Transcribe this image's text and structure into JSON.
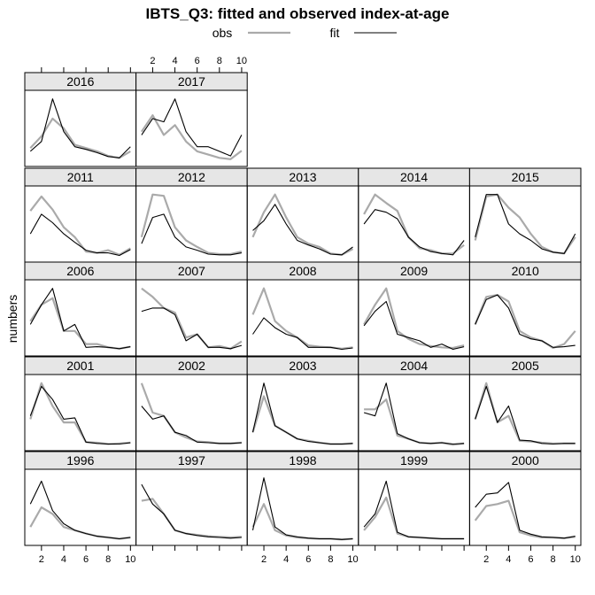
{
  "chart_data": {
    "type": "line",
    "title": "IBTS_Q3: fitted and observed index-at-age",
    "ylabel": "numbers",
    "x": [
      1,
      2,
      3,
      4,
      5,
      6,
      7,
      8,
      9,
      10
    ],
    "x_ticks": [
      2,
      4,
      6,
      8,
      10
    ],
    "xlim": [
      0.5,
      10.5
    ],
    "ylim": [
      0,
      1
    ],
    "legend": {
      "position": "top",
      "entries": [
        {
          "name": "obs",
          "color": "#aaaaaa"
        },
        {
          "name": "fit",
          "color": "#000000"
        }
      ]
    },
    "layout": {
      "columns": 5,
      "rows": 5
    },
    "panels": [
      {
        "year": "1996",
        "obs": [
          0.2,
          0.5,
          0.4,
          0.2,
          0.15,
          0.1,
          0.06,
          0.04,
          0.02,
          0.04
        ],
        "fit": [
          0.55,
          0.9,
          0.45,
          0.25,
          0.15,
          0.1,
          0.06,
          0.04,
          0.02,
          0.04
        ]
      },
      {
        "year": "1997",
        "obs": [
          0.6,
          0.63,
          0.4,
          0.15,
          0.1,
          0.08,
          0.06,
          0.05,
          0.04,
          0.05
        ],
        "fit": [
          0.85,
          0.55,
          0.4,
          0.15,
          0.1,
          0.07,
          0.05,
          0.04,
          0.03,
          0.04
        ]
      },
      {
        "year": "1998",
        "obs": [
          0.2,
          0.55,
          0.15,
          0.07,
          0.04,
          0.03,
          0.02,
          0.02,
          0.01,
          0.02
        ],
        "fit": [
          0.15,
          0.95,
          0.2,
          0.08,
          0.05,
          0.03,
          0.02,
          0.02,
          0.01,
          0.02
        ]
      },
      {
        "year": "1999",
        "obs": [
          0.15,
          0.35,
          0.65,
          0.1,
          0.05,
          0.04,
          0.03,
          0.02,
          0.02,
          0.02
        ],
        "fit": [
          0.2,
          0.4,
          0.9,
          0.12,
          0.05,
          0.04,
          0.03,
          0.02,
          0.02,
          0.02
        ]
      },
      {
        "year": "2000",
        "obs": [
          0.3,
          0.52,
          0.55,
          0.6,
          0.12,
          0.07,
          0.04,
          0.04,
          0.03,
          0.05
        ],
        "fit": [
          0.5,
          0.7,
          0.72,
          0.88,
          0.15,
          0.09,
          0.05,
          0.04,
          0.03,
          0.06
        ]
      },
      {
        "year": "2001",
        "obs": [
          0.4,
          0.95,
          0.6,
          0.35,
          0.35,
          0.05,
          0.04,
          0.02,
          0.03,
          0.04
        ],
        "fit": [
          0.45,
          0.9,
          0.7,
          0.4,
          0.42,
          0.05,
          0.03,
          0.02,
          0.02,
          0.04
        ]
      },
      {
        "year": "2002",
        "obs": [
          0.95,
          0.5,
          0.45,
          0.2,
          0.12,
          0.06,
          0.05,
          0.03,
          0.03,
          0.04
        ],
        "fit": [
          0.6,
          0.4,
          0.45,
          0.2,
          0.15,
          0.05,
          0.04,
          0.03,
          0.03,
          0.04
        ]
      },
      {
        "year": "2003",
        "obs": [
          0.2,
          0.75,
          0.3,
          0.2,
          0.1,
          0.07,
          0.04,
          0.02,
          0.02,
          0.03
        ],
        "fit": [
          0.2,
          0.95,
          0.3,
          0.2,
          0.1,
          0.06,
          0.04,
          0.02,
          0.02,
          0.03
        ]
      },
      {
        "year": "2004",
        "obs": [
          0.55,
          0.55,
          0.7,
          0.15,
          0.1,
          0.04,
          0.03,
          0.04,
          0.01,
          0.03
        ],
        "fit": [
          0.5,
          0.45,
          0.95,
          0.18,
          0.1,
          0.04,
          0.03,
          0.04,
          0.02,
          0.03
        ]
      },
      {
        "year": "2005",
        "obs": [
          0.4,
          0.95,
          0.35,
          0.45,
          0.07,
          0.06,
          0.04,
          0.03,
          0.03,
          0.03
        ],
        "fit": [
          0.4,
          0.9,
          0.35,
          0.6,
          0.08,
          0.07,
          0.03,
          0.02,
          0.03,
          0.03
        ]
      },
      {
        "year": "2006",
        "obs": [
          0.45,
          0.7,
          0.8,
          0.3,
          0.3,
          0.1,
          0.1,
          0.05,
          0.03,
          0.06
        ],
        "fit": [
          0.4,
          0.7,
          0.95,
          0.3,
          0.4,
          0.05,
          0.06,
          0.05,
          0.03,
          0.06
        ]
      },
      {
        "year": "2007",
        "obs": [
          0.95,
          0.82,
          0.65,
          0.58,
          0.2,
          0.25,
          0.05,
          0.07,
          0.03,
          0.14
        ],
        "fit": [
          0.6,
          0.65,
          0.65,
          0.55,
          0.15,
          0.25,
          0.05,
          0.05,
          0.03,
          0.08
        ]
      },
      {
        "year": "2008",
        "obs": [
          0.55,
          0.95,
          0.45,
          0.3,
          0.2,
          0.08,
          0.06,
          0.05,
          0.03,
          0.05
        ],
        "fit": [
          0.25,
          0.5,
          0.35,
          0.25,
          0.2,
          0.05,
          0.05,
          0.05,
          0.02,
          0.04
        ]
      },
      {
        "year": "2009",
        "obs": [
          0.4,
          0.7,
          0.95,
          0.3,
          0.18,
          0.1,
          0.07,
          0.05,
          0.04,
          0.08
        ],
        "fit": [
          0.38,
          0.6,
          0.75,
          0.25,
          0.2,
          0.15,
          0.05,
          0.1,
          0.02,
          0.06
        ]
      },
      {
        "year": "2010",
        "obs": [
          0.4,
          0.82,
          0.85,
          0.75,
          0.3,
          0.2,
          0.15,
          0.04,
          0.1,
          0.3
        ],
        "fit": [
          0.4,
          0.78,
          0.85,
          0.65,
          0.25,
          0.18,
          0.15,
          0.05,
          0.06,
          0.08
        ]
      },
      {
        "year": "2011",
        "obs": [
          0.7,
          0.92,
          0.72,
          0.45,
          0.3,
          0.08,
          0.06,
          0.1,
          0.03,
          0.13
        ],
        "fit": [
          0.35,
          0.65,
          0.52,
          0.35,
          0.22,
          0.1,
          0.06,
          0.06,
          0.02,
          0.11
        ]
      },
      {
        "year": "2012",
        "obs": [
          0.3,
          0.95,
          0.93,
          0.45,
          0.25,
          0.15,
          0.06,
          0.04,
          0.04,
          0.08
        ],
        "fit": [
          0.2,
          0.6,
          0.65,
          0.3,
          0.15,
          0.1,
          0.04,
          0.03,
          0.03,
          0.06
        ]
      },
      {
        "year": "2013",
        "obs": [
          0.3,
          0.68,
          0.95,
          0.6,
          0.3,
          0.2,
          0.15,
          0.05,
          0.03,
          0.12
        ],
        "fit": [
          0.4,
          0.55,
          0.8,
          0.5,
          0.25,
          0.18,
          0.12,
          0.04,
          0.03,
          0.15
        ]
      },
      {
        "year": "2014",
        "obs": [
          0.65,
          0.95,
          0.82,
          0.7,
          0.3,
          0.13,
          0.1,
          0.05,
          0.05,
          0.18
        ],
        "fit": [
          0.5,
          0.72,
          0.68,
          0.58,
          0.3,
          0.15,
          0.08,
          0.05,
          0.03,
          0.25
        ]
      },
      {
        "year": "2015",
        "obs": [
          0.25,
          0.92,
          0.95,
          0.75,
          0.6,
          0.35,
          0.15,
          0.07,
          0.05,
          0.3
        ],
        "fit": [
          0.3,
          0.95,
          0.95,
          0.5,
          0.35,
          0.25,
          0.12,
          0.07,
          0.05,
          0.35
        ]
      },
      {
        "year": "2016",
        "obs": [
          0.2,
          0.38,
          0.65,
          0.5,
          0.25,
          0.2,
          0.15,
          0.08,
          0.05,
          0.15
        ],
        "fit": [
          0.15,
          0.3,
          0.95,
          0.45,
          0.22,
          0.18,
          0.13,
          0.07,
          0.05,
          0.22
        ]
      },
      {
        "year": "2017",
        "obs": [
          0.45,
          0.7,
          0.4,
          0.55,
          0.3,
          0.15,
          0.1,
          0.05,
          0.03,
          0.16
        ],
        "fit": [
          0.4,
          0.65,
          0.6,
          0.95,
          0.45,
          0.22,
          0.22,
          0.15,
          0.08,
          0.4
        ]
      }
    ]
  }
}
